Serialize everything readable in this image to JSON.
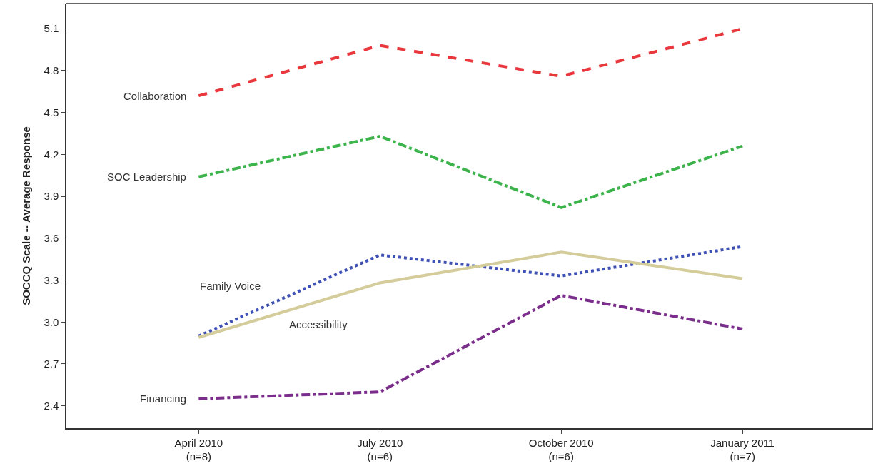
{
  "chart_data": {
    "type": "line",
    "ylabel": "SOCCQ Scale -- Average Response",
    "categories": [
      "April 2010\n(n=8)",
      "July 2010\n(n=6)",
      "October 2010\n(n=6)",
      "January 2011\n(n=7)"
    ],
    "ylim": [
      2.24,
      5.28
    ],
    "yticks": [
      2.4,
      2.7,
      {
        "value": 3,
        "label": "3.0"
      },
      3.3,
      3.6,
      3.9,
      4.2,
      4.5,
      4.8,
      5.1
    ],
    "legend": false,
    "marker": "none",
    "series": [
      {
        "name": "Collaboration",
        "color": "#e8383d",
        "line_style": "dashed",
        "values": [
          4.62,
          4.98,
          4.76,
          5.1
        ]
      },
      {
        "name": "SOC Leadership",
        "color": "#3cb44b",
        "line_style": "dashdot",
        "values": [
          4.04,
          4.33,
          3.82,
          4.26
        ]
      },
      {
        "name": "Family Voice",
        "color": "#3f51b5",
        "line_style": "dotted",
        "values": [
          2.9,
          3.48,
          3.33,
          3.54
        ]
      },
      {
        "name": "Accessibility",
        "color": "#d4cc9a",
        "line_style": "solid",
        "values": [
          2.89,
          3.28,
          3.5,
          3.31
        ]
      },
      {
        "name": "Financing",
        "color": "#7b2d8b",
        "line_style": "dashdot",
        "values": [
          2.45,
          2.5,
          3.19,
          2.95
        ]
      }
    ]
  }
}
